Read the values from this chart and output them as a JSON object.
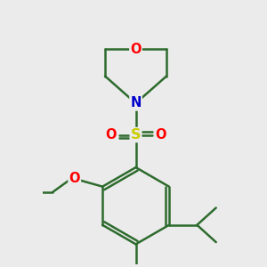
{
  "bg_color": "#ebebeb",
  "bond_color": "#2d6b2d",
  "bond_width": 1.8,
  "atom_colors": {
    "O": "#ff0000",
    "N": "#0000cc",
    "S": "#cccc00",
    "C": "#2d6b2d"
  },
  "font_size": 10.5,
  "scale": 1.0
}
